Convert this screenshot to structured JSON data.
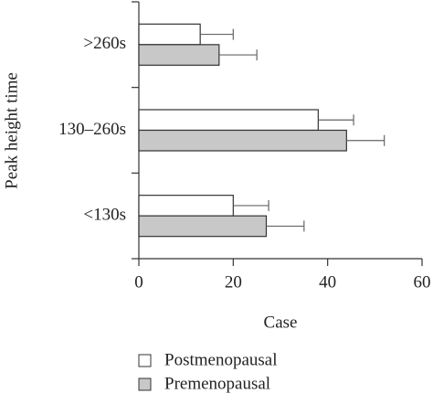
{
  "chart_data": {
    "type": "hbar",
    "x_label": "Case",
    "y_label": "Peak height time",
    "categories": [
      ">260s",
      "130–260s",
      "<130s"
    ],
    "series": [
      {
        "name": "Postmenopausal",
        "color": "#ffffff",
        "values": [
          13,
          38,
          20
        ],
        "errors": [
          7,
          7.5,
          7.5
        ]
      },
      {
        "name": "Premenopausal",
        "color": "#c8c8c8",
        "values": [
          17,
          44,
          27
        ],
        "errors": [
          8,
          8,
          8
        ]
      }
    ],
    "xlim": [
      0,
      60
    ],
    "xticks": [
      0,
      20,
      40,
      60
    ]
  }
}
